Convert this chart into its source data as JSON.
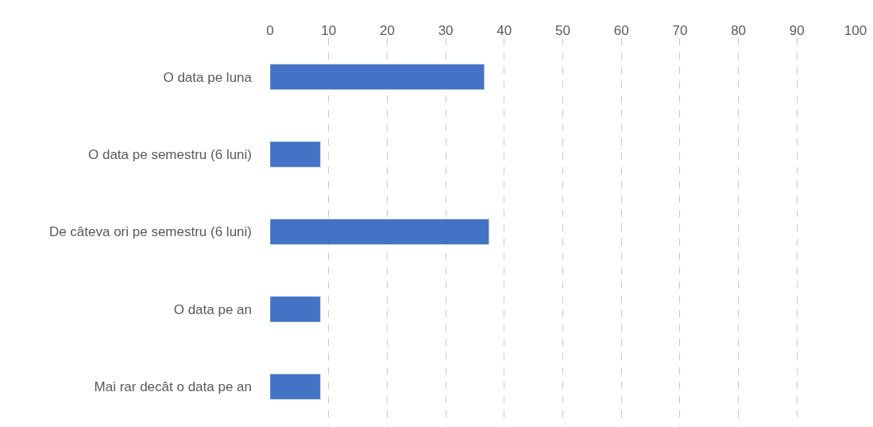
{
  "chart_data": {
    "type": "bar",
    "orientation": "horizontal",
    "categories": [
      "O data pe luna",
      "O data pe semestru (6 luni)",
      "De câteva ori pe semestru (6 luni)",
      "O data pe an",
      "Mai rar decât o data pe an"
    ],
    "values": [
      36.6,
      8.6,
      37.4,
      8.6,
      8.6
    ],
    "color": "#4472c4",
    "xlim": [
      0,
      100
    ],
    "xticks": [
      0,
      10,
      20,
      30,
      40,
      50,
      60,
      70,
      80,
      90,
      100
    ],
    "grid": "x"
  }
}
